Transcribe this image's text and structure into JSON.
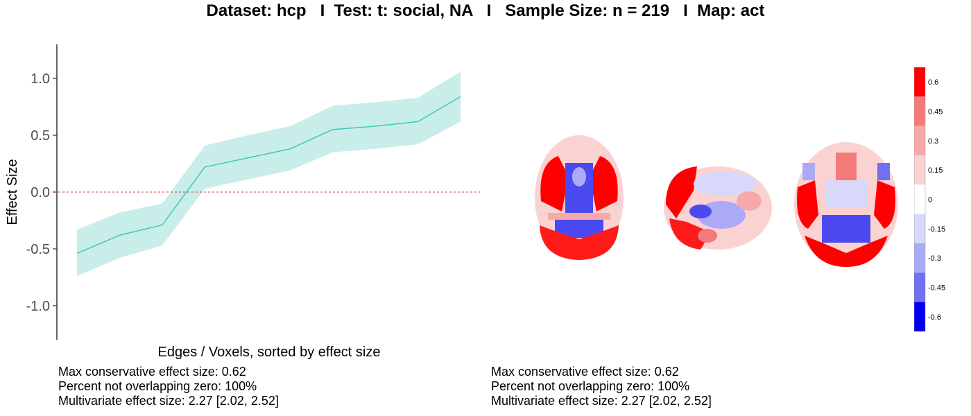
{
  "title": "Dataset: hcp   I  Test: t: social, NA   I   Sample Size: n = 219   I  Map: act",
  "chart_data": {
    "type": "line",
    "title": "Dataset: hcp   I  Test: t: social, NA   I   Sample Size: n = 219   I  Map: act",
    "xlabel": "Edges / Voxels, sorted by effect size",
    "ylabel": "Effect Size",
    "ylim": [
      -1.3,
      1.3
    ],
    "yticks": [
      -1.0,
      -0.5,
      0.0,
      0.5,
      1.0
    ],
    "ytick_labels": [
      "-1.0",
      "-0.5",
      "0.0",
      "0.5",
      "1.0"
    ],
    "x": [
      1,
      2,
      3,
      4,
      5,
      6,
      7,
      8,
      9,
      10
    ],
    "series": [
      {
        "values": [
          -0.54,
          -0.38,
          -0.29,
          0.22,
          0.3,
          0.38,
          0.55,
          0.58,
          0.62,
          0.84
        ],
        "lower": [
          -0.74,
          -0.58,
          -0.47,
          0.03,
          0.11,
          0.19,
          0.35,
          0.38,
          0.42,
          0.62
        ],
        "upper": [
          -0.33,
          -0.18,
          -0.1,
          0.41,
          0.5,
          0.58,
          0.76,
          0.79,
          0.83,
          1.06
        ],
        "color": "#3fc9b7",
        "band_color": "#c9eeea"
      }
    ],
    "reference_line": {
      "y": 0,
      "color": "#e06060",
      "style": "dotted"
    },
    "grid": false
  },
  "stats_left": {
    "line1": "Max conservative effect size: 0.62",
    "line2": "Percent not overlapping zero: 100%",
    "line3": "Multivariate effect size: 2.27 [2.02, 2.52]"
  },
  "stats_right": {
    "line1": "Max conservative effect size: 0.62",
    "line2": "Percent not overlapping zero: 100%",
    "line3": "Multivariate effect size: 2.27 [2.02, 2.52]"
  },
  "colorbar": {
    "labels": [
      "0.6",
      "0.45",
      "0.3",
      "0.15",
      "0",
      "-0.15",
      "-0.3",
      "-0.45",
      "-0.6"
    ],
    "colors": [
      "#ff0000",
      "#f47a7a",
      "#f7a8a8",
      "#fbd2d2",
      "#ffffff",
      "#d8d8fb",
      "#aaaaf6",
      "#7070f2",
      "#0000ee"
    ]
  }
}
